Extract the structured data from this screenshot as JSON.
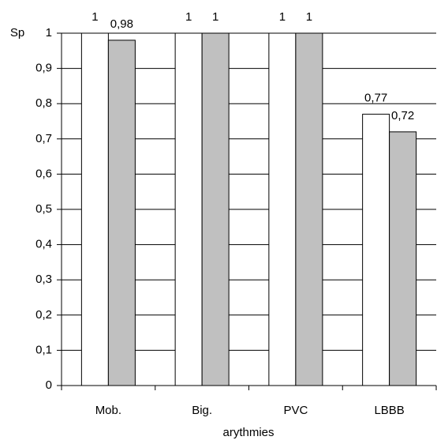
{
  "chart_data": {
    "type": "bar",
    "y_label": "Sp",
    "x_label": "arythmies",
    "categories": [
      "Mob.",
      "Big.",
      "PVC",
      "LBBB"
    ],
    "series": [
      {
        "color": "#ffffff",
        "values": [
          1,
          1,
          1,
          0.77
        ],
        "value_labels": [
          "1",
          "1",
          "1",
          "0,77"
        ]
      },
      {
        "color": "#c0c0c0",
        "values": [
          0.98,
          1,
          1,
          0.72
        ],
        "value_labels": [
          "0,98",
          "1",
          "1",
          "0,72"
        ]
      }
    ],
    "ylim": [
      0,
      1
    ],
    "yticks": [
      0,
      {
        "value": 0.1,
        "label": "0,1"
      },
      {
        "value": 0.2,
        "label": "0,2"
      },
      {
        "value": 0.3,
        "label": "0,3"
      },
      {
        "value": 0.4,
        "label": "0,4"
      },
      {
        "value": 0.5,
        "label": "0,5"
      },
      {
        "value": 0.6,
        "label": "0,6"
      },
      {
        "value": 0.7,
        "label": "0,7"
      },
      {
        "value": 0.8,
        "label": "0,8"
      },
      {
        "value": 0.9,
        "label": "0,9"
      },
      1
    ],
    "grid": true
  }
}
